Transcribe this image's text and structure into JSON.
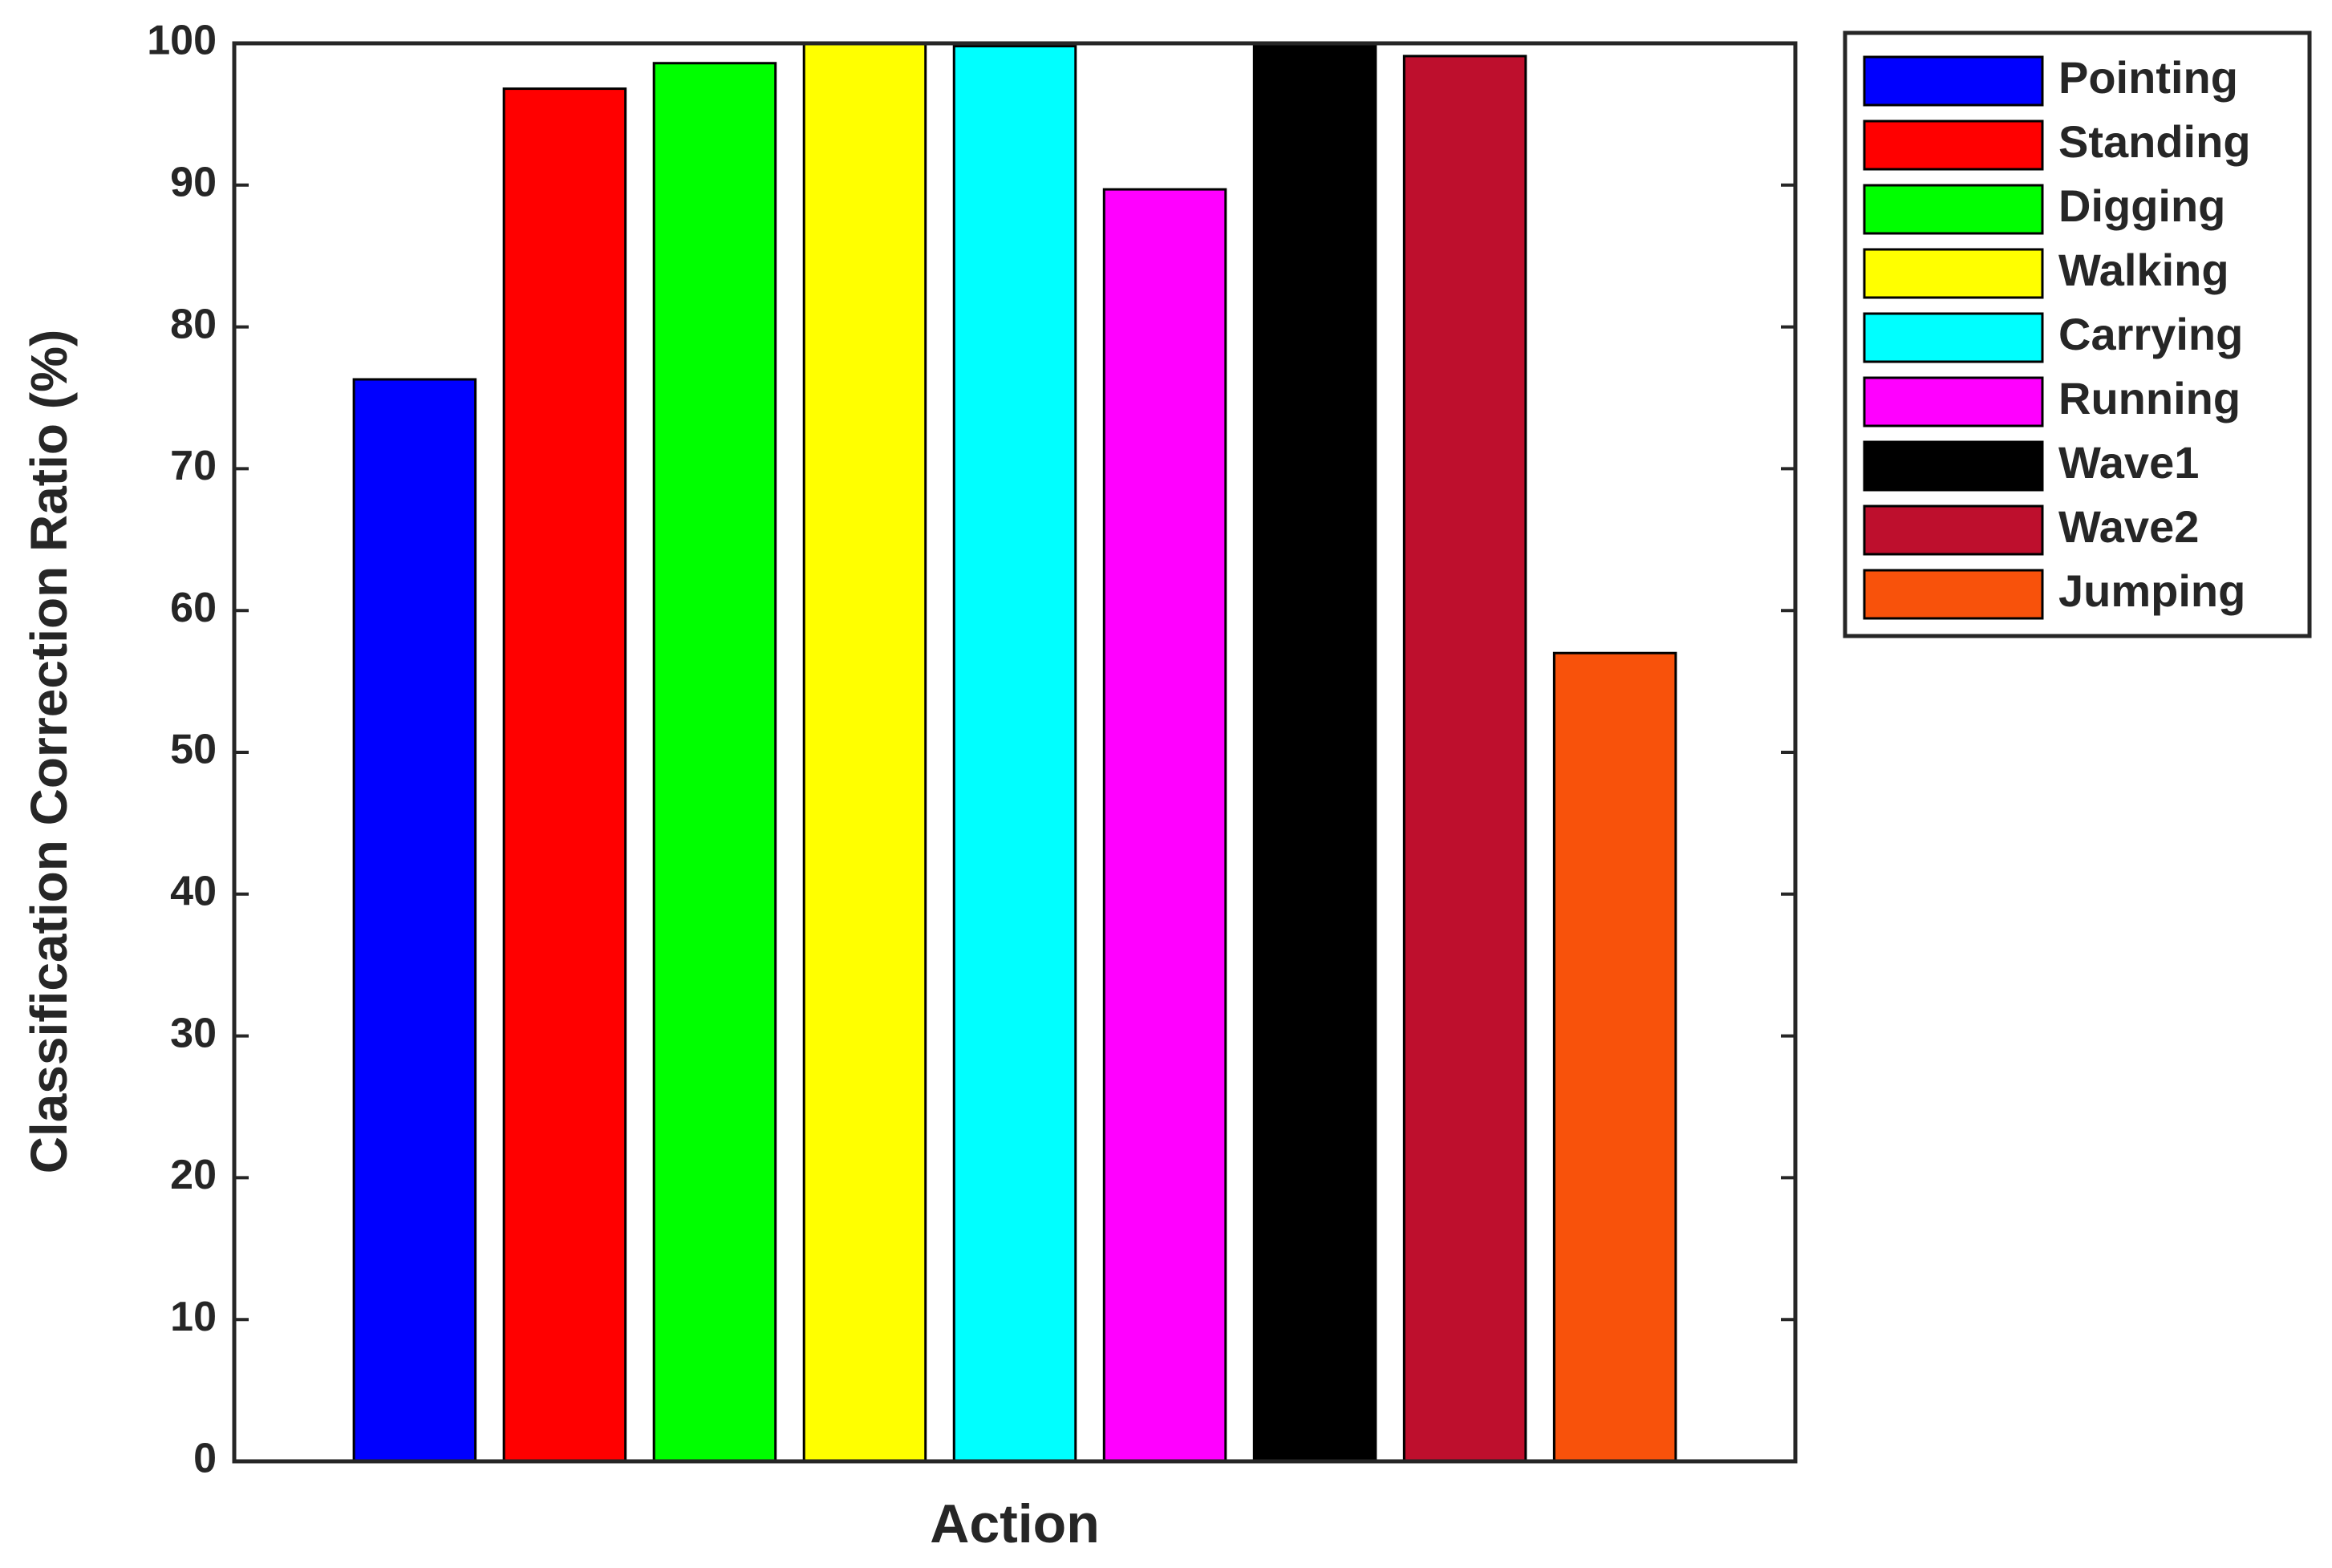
{
  "chart_data": {
    "type": "bar",
    "x_label": "Action",
    "y_label": "Classification Correction Ratio (%)",
    "categories": [
      null
    ],
    "series": [
      {
        "name": "Pointing",
        "color": "#0000ff",
        "values": [
          76.3
        ]
      },
      {
        "name": "Standing",
        "color": "#ff0000",
        "values": [
          96.8
        ]
      },
      {
        "name": "Digging",
        "color": "#00ff00",
        "values": [
          98.6
        ]
      },
      {
        "name": "Walking",
        "color": "#ffff00",
        "values": [
          100
        ]
      },
      {
        "name": "Carrying",
        "color": "#00ffff",
        "values": [
          99.8
        ]
      },
      {
        "name": "Running",
        "color": "#ff00ff",
        "values": [
          89.7
        ]
      },
      {
        "name": "Wave1",
        "color": "#000000",
        "values": [
          100
        ]
      },
      {
        "name": "Wave2",
        "color": "#be0f2d",
        "values": [
          99.1
        ]
      },
      {
        "name": "Jumping",
        "color": "#f8520b",
        "values": [
          57.0
        ]
      }
    ],
    "ylim": [
      0,
      100
    ],
    "yticks": [
      0,
      10,
      20,
      30,
      40,
      50,
      60,
      70,
      80,
      90,
      100
    ],
    "grid": false,
    "legend": "outside-right"
  }
}
